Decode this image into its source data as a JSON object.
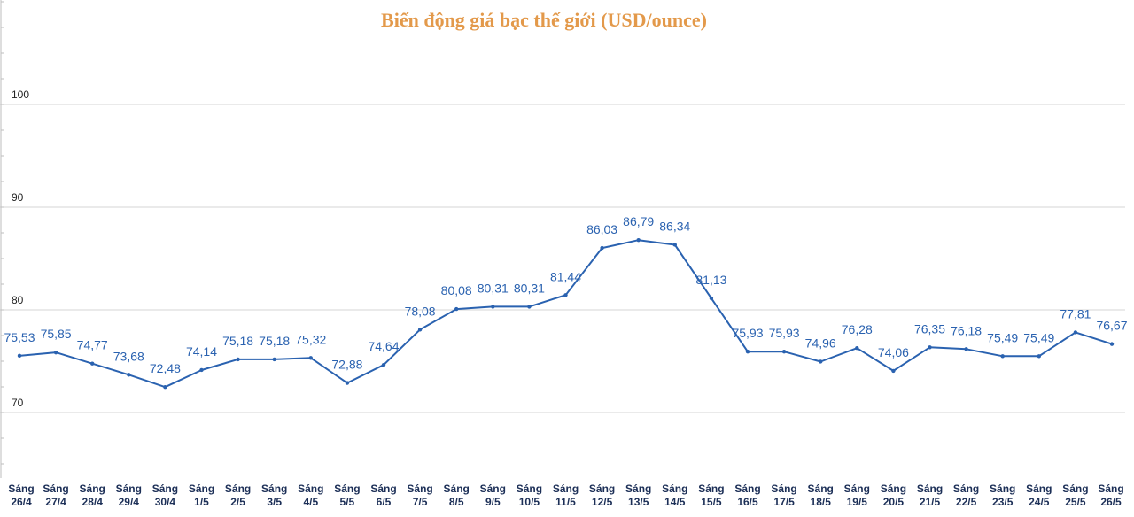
{
  "colors": {
    "title": "#e3994a",
    "line": "#2a62b0",
    "labels": "#2a62b0",
    "grid": "#d4d4d4",
    "axis_text": "#1c2f57"
  },
  "chart_data": {
    "type": "line",
    "title": "Biến động giá bạc thế giới (USD/ounce)",
    "xlabel": "",
    "ylabel": "",
    "ylim": [
      60,
      110
    ],
    "yticks": [
      70,
      80,
      90,
      100
    ],
    "grid": true,
    "legend": "none",
    "categories": [
      "Sáng 26/4",
      "Sáng 27/4",
      "Sáng 28/4",
      "Sáng 29/4",
      "Sáng 30/4",
      "Sáng 1/5",
      "Sáng 2/5",
      "Sáng 3/5",
      "Sáng 4/5",
      "Sáng 5/5",
      "Sáng 6/5",
      "Sáng 7/5",
      "Sáng 8/5",
      "Sáng 9/5",
      "Sáng 10/5",
      "Sáng 11/5",
      "Sáng 12/5",
      "Sáng 13/5",
      "Sáng 14/5",
      "Sáng 15/5",
      "Sáng 16/5",
      "Sáng 17/5",
      "Sáng 18/5",
      "Sáng 19/5",
      "Sáng 20/5",
      "Sáng 21/5",
      "Sáng 22/5",
      "Sáng 23/5",
      "Sáng 24/5",
      "Sáng 25/5",
      "Sáng 26/5"
    ],
    "values": [
      75.53,
      75.85,
      74.77,
      73.68,
      72.48,
      74.14,
      75.18,
      75.18,
      75.32,
      72.88,
      74.64,
      78.08,
      80.08,
      80.31,
      80.31,
      81.44,
      86.03,
      86.79,
      86.34,
      81.13,
      75.93,
      75.93,
      74.96,
      76.28,
      74.06,
      76.35,
      76.18,
      75.49,
      75.49,
      77.81,
      76.67
    ],
    "data_labels": [
      "75,53",
      "75,85",
      "74,77",
      "73,68",
      "72,48",
      "74,14",
      "75,18",
      "75,18",
      "75,32",
      "72,88",
      "74,64",
      "78,08",
      "80,08",
      "80,31",
      "80,31",
      "81,44",
      "86,03",
      "86,79",
      "86,34",
      "81,13",
      "75,93",
      "75,93",
      "74,96",
      "76,28",
      "74,06",
      "76,35",
      "76,18",
      "75,49",
      "75,49",
      "77,81",
      "76,67"
    ]
  }
}
